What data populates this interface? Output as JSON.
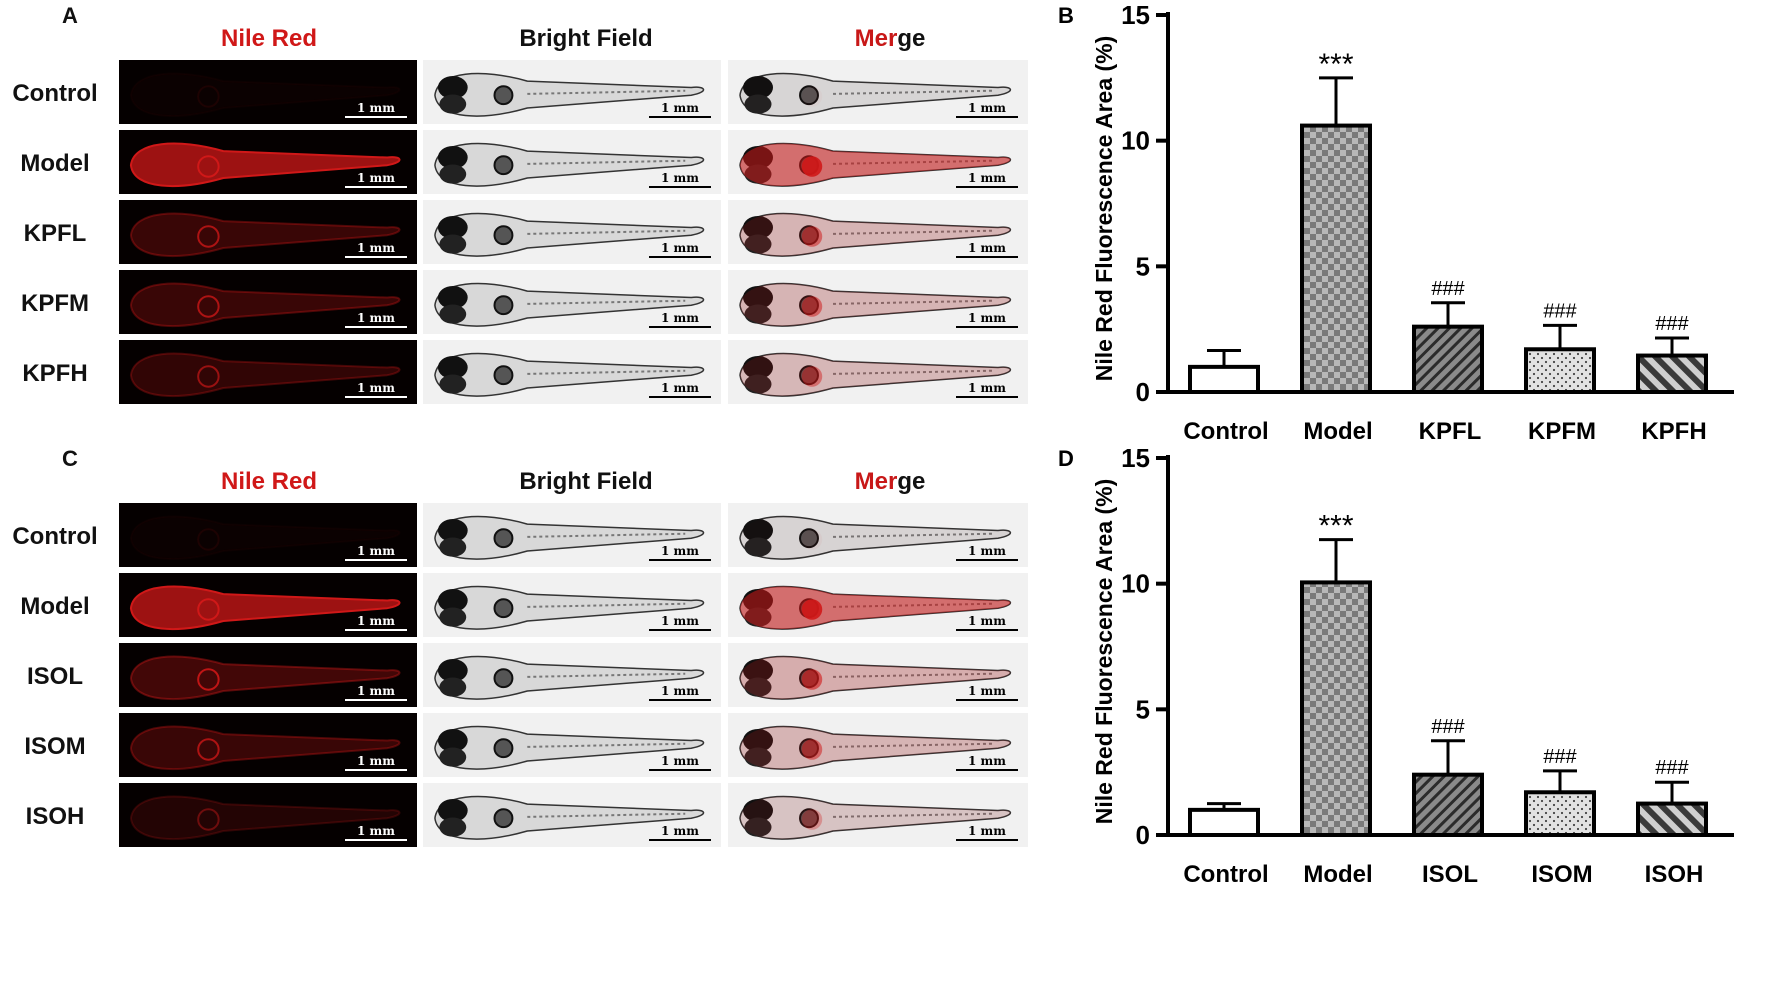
{
  "panels": [
    {
      "letter": "A",
      "headers": {
        "nile": "Nile Red",
        "bright": "Bright Field",
        "merge_a": "Mer",
        "merge_b": "ge"
      },
      "rows": [
        "Control",
        "Model",
        "KPFL",
        "KPFM",
        "KPFH"
      ],
      "intensity": [
        0.02,
        1.0,
        0.35,
        0.35,
        0.3
      ],
      "scale_label": "1 mm"
    },
    {
      "letter": "C",
      "headers": {
        "nile": "Nile Red",
        "bright": "Bright Field",
        "merge_a": "Mer",
        "merge_b": "ge"
      },
      "rows": [
        "Control",
        "Model",
        "ISOL",
        "ISOM",
        "ISOH"
      ],
      "intensity": [
        0.03,
        1.0,
        0.4,
        0.35,
        0.2
      ],
      "scale_label": "1 mm"
    }
  ],
  "colors": {
    "nile_red": "#d01818",
    "merge_red": "#c81818",
    "bar_dark": "#555555",
    "bar_light": "#cfcfcf"
  },
  "chart_data": [
    {
      "letter": "B",
      "type": "bar",
      "ylabel": "Nile Red Fluorescence Area (%)",
      "ylim": [
        0,
        15
      ],
      "yticks": [
        0,
        5,
        10,
        15
      ],
      "categories": [
        "Control",
        "Model",
        "KPFL",
        "KPFM",
        "KPFH"
      ],
      "values": [
        1.0,
        10.6,
        2.6,
        1.7,
        1.45
      ],
      "errors": [
        0.65,
        1.9,
        0.95,
        0.95,
        0.7
      ],
      "annotations": [
        "",
        "***",
        "###",
        "###",
        "###"
      ],
      "patterns": [
        "white",
        "checker",
        "hatch",
        "dots",
        "hatch-dark"
      ]
    },
    {
      "letter": "D",
      "type": "bar",
      "ylabel": "Nile Red Fluorescence Area (%)",
      "ylim": [
        0,
        15
      ],
      "yticks": [
        0,
        5,
        10,
        15
      ],
      "categories": [
        "Control",
        "Model",
        "ISOL",
        "ISOM",
        "ISOH"
      ],
      "values": [
        1.0,
        10.05,
        2.4,
        1.7,
        1.25
      ],
      "errors": [
        0.25,
        1.7,
        1.35,
        0.85,
        0.85
      ],
      "annotations": [
        "",
        "***",
        "###",
        "###",
        "###"
      ],
      "patterns": [
        "white",
        "checker",
        "hatch",
        "dots",
        "hatch-dark"
      ]
    }
  ]
}
